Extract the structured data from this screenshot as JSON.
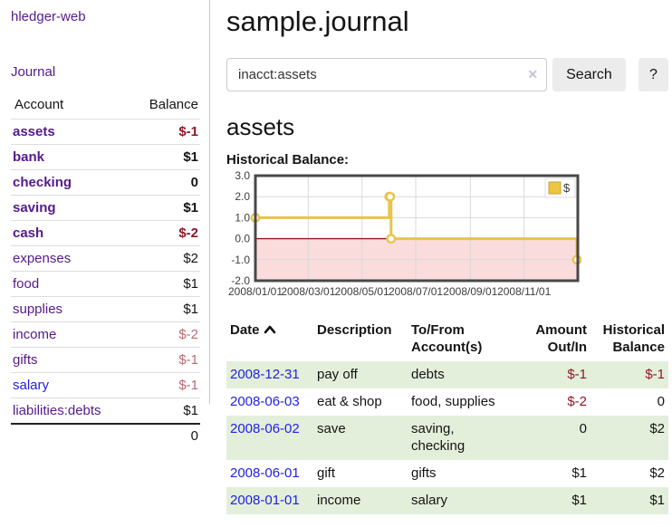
{
  "app": {
    "brand": "hledger-web",
    "nav_journal": "Journal"
  },
  "sidebar": {
    "accounts_table": {
      "col_account": "Account",
      "col_balance": "Balance"
    },
    "accounts": [
      {
        "name": "assets",
        "level": 0,
        "bold": true,
        "balance": "$-1",
        "balance_style": "neg"
      },
      {
        "name": "bank",
        "level": 1,
        "bold": true,
        "balance": "$1",
        "balance_style": "pos"
      },
      {
        "name": "checking",
        "level": 2,
        "bold": true,
        "balance": "0",
        "balance_style": "pos"
      },
      {
        "name": "saving",
        "level": 2,
        "bold": true,
        "balance": "$1",
        "balance_style": "pos"
      },
      {
        "name": "cash",
        "level": 1,
        "bold": true,
        "balance": "$-2",
        "balance_style": "neg"
      },
      {
        "name": "expenses",
        "level": 0,
        "bold": false,
        "balance": "$2",
        "balance_style": "pos"
      },
      {
        "name": "food",
        "level": 1,
        "bold": false,
        "balance": "$1",
        "balance_style": "pos"
      },
      {
        "name": "supplies",
        "level": 1,
        "bold": false,
        "balance": "$1",
        "balance_style": "pos"
      },
      {
        "name": "income",
        "level": 0,
        "bold": false,
        "balance": "$-2",
        "balance_style": "neg-muted"
      },
      {
        "name": "gifts",
        "level": 1,
        "bold": false,
        "balance": "$-1",
        "balance_style": "neg-muted"
      },
      {
        "name": "salary",
        "level": 1,
        "bold": false,
        "link_style": "unvisited",
        "balance": "$-1",
        "balance_style": "neg-muted"
      },
      {
        "name": "liabilities:debts",
        "level": 0,
        "bold": false,
        "balance": "$1",
        "balance_style": "pos"
      }
    ],
    "total": "0"
  },
  "main": {
    "title": "sample.journal",
    "search": {
      "value": "inacct:assets",
      "clear_icon": "✕",
      "button_label": "Search",
      "help_label": "?"
    },
    "account_heading": "assets",
    "chart_title": "Historical Balance:"
  },
  "chart_data": {
    "type": "line",
    "step": true,
    "title": "Historical Balance:",
    "x_domain_days": [
      0,
      366
    ],
    "x_ticks": [
      {
        "day": 0,
        "label": "2008/01/01"
      },
      {
        "day": 60,
        "label": "2008/03/01"
      },
      {
        "day": 121,
        "label": "2008/05/01"
      },
      {
        "day": 182,
        "label": "2008/07/01"
      },
      {
        "day": 244,
        "label": "2008/09/01"
      },
      {
        "day": 305,
        "label": "2008/11/01"
      }
    ],
    "y_domain": [
      -2,
      3
    ],
    "y_ticks": [
      "3.0",
      "2.0",
      "1.0",
      "0.0",
      "-1.0",
      "-2.0"
    ],
    "series": [
      {
        "name": "$",
        "color": "#e9c44a",
        "points": [
          {
            "date": "2008-01-01",
            "day": 0,
            "value": 1
          },
          {
            "date": "2008-06-01",
            "day": 152,
            "value": 2
          },
          {
            "date": "2008-06-02",
            "day": 153,
            "value": 2
          },
          {
            "date": "2008-06-03",
            "day": 154,
            "value": 0
          },
          {
            "date": "2008-12-31",
            "day": 365,
            "value": -1
          }
        ]
      }
    ],
    "legend": {
      "label": "$",
      "position": "top-right",
      "swatch_color": "#eec53f"
    },
    "colors": {
      "negative_region": "#fadcdc",
      "zero_line": "#8b1a1a",
      "grid": "#d9d9d9",
      "border": "#484848",
      "tick_text": "#3d3d3d"
    }
  },
  "register": {
    "columns": {
      "date": "Date",
      "description": "Description",
      "accounts": "To/From Account(s)",
      "amount": "Amount Out/In",
      "balance": "Historical Balance"
    },
    "sort": {
      "column": "date",
      "direction": "asc"
    },
    "rows": [
      {
        "date": "2008-12-31",
        "description": "pay off",
        "accounts": "debts",
        "amount": "$-1",
        "amount_negative": true,
        "balance": "$-1",
        "balance_negative": true
      },
      {
        "date": "2008-06-03",
        "description": "eat & shop",
        "accounts": "food, supplies",
        "amount": "$-2",
        "amount_negative": true,
        "balance": "0",
        "balance_negative": false
      },
      {
        "date": "2008-06-02",
        "description": "save",
        "accounts": "saving, checking",
        "amount": "0",
        "amount_negative": false,
        "balance": "$2",
        "balance_negative": false
      },
      {
        "date": "2008-06-01",
        "description": "gift",
        "accounts": "gifts",
        "amount": "$1",
        "amount_negative": false,
        "balance": "$2",
        "balance_negative": false
      },
      {
        "date": "2008-01-01",
        "description": "income",
        "accounts": "salary",
        "amount": "$1",
        "amount_negative": false,
        "balance": "$1",
        "balance_negative": false
      }
    ]
  },
  "colors": {
    "accent_purple": "#551a8b",
    "link_blue": "#2222df",
    "negative_red": "#8f1728",
    "negative_muted_red": "#bb6a70",
    "stripe_green": "#e3efda"
  }
}
